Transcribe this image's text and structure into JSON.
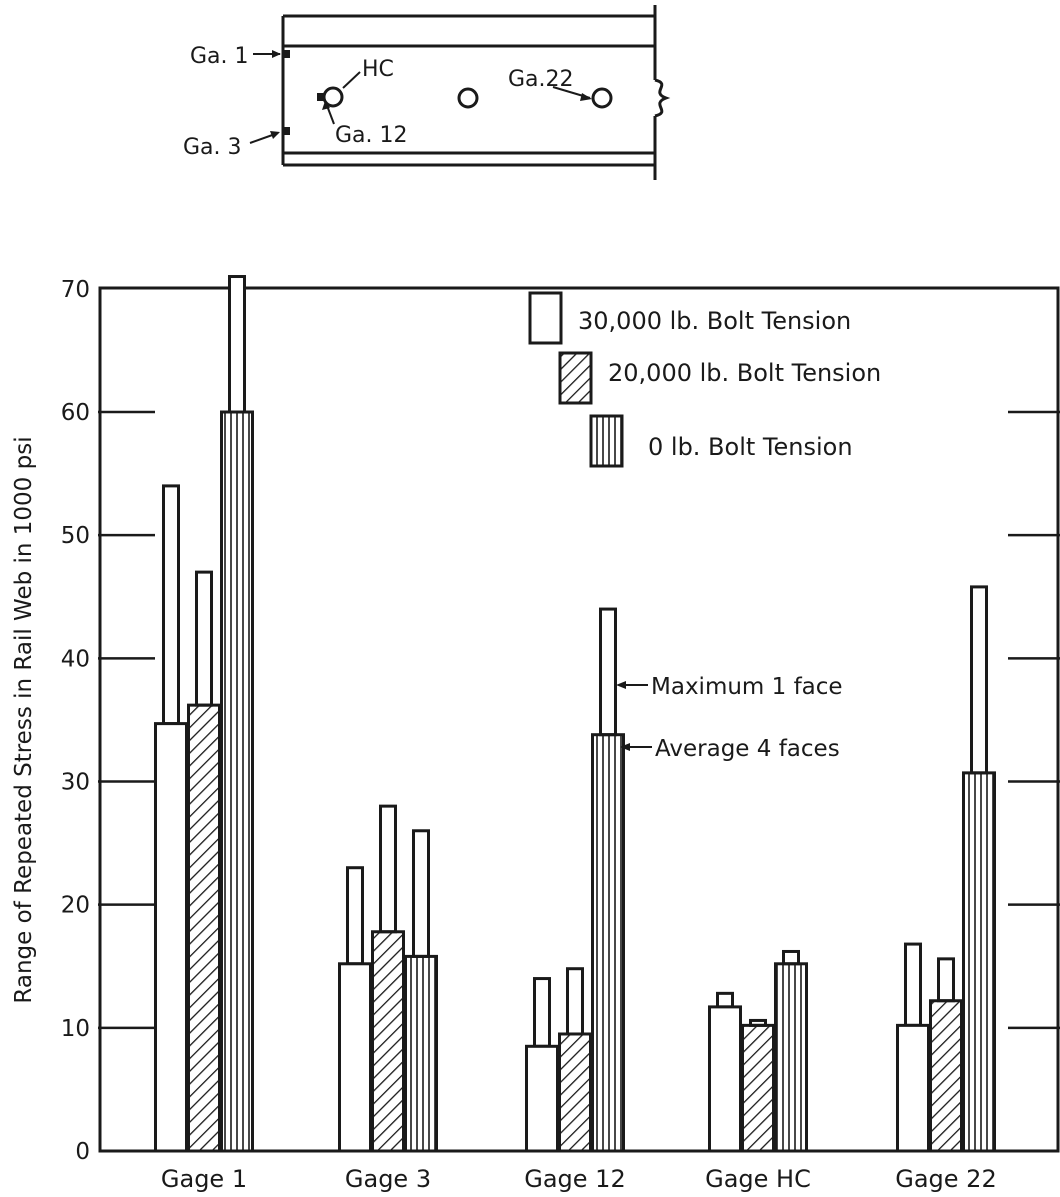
{
  "diagram": {
    "labels": {
      "ga1": "Ga. 1",
      "ga3": "Ga. 3",
      "hc": "HC",
      "ga12": "Ga. 12",
      "ga22": "Ga.22"
    }
  },
  "chart_data": {
    "type": "bar",
    "ylabel": "Range of Repeated Stress in Rail Web in 1000 psi",
    "xlabel": "",
    "ylim": [
      0,
      70
    ],
    "yticks": [
      0,
      10,
      20,
      30,
      40,
      50,
      60,
      70
    ],
    "categories": [
      "Gage 1",
      "Gage 3",
      "Gage 12",
      "Gage HC",
      "Gage 22"
    ],
    "series": [
      {
        "name": "30,000 lb. Bolt Tension",
        "pattern": "plain",
        "average": [
          34.7,
          15.2,
          8.5,
          11.7,
          10.2
        ],
        "maximum": [
          54,
          23,
          14,
          12.8,
          16.8
        ]
      },
      {
        "name": "20,000 lb. Bolt Tension",
        "pattern": "hatch",
        "average": [
          36.2,
          17.8,
          9.5,
          10.2,
          12.2
        ],
        "maximum": [
          47,
          28,
          14.8,
          10.6,
          15.6
        ]
      },
      {
        "name": "0 lb. Bolt Tension",
        "pattern": "vertical",
        "average": [
          60,
          15.8,
          33.8,
          15.2,
          30.7
        ],
        "maximum": [
          71,
          26,
          44,
          16.2,
          45.8
        ]
      }
    ],
    "annotations": {
      "maximum": "Maximum 1 face",
      "average": "Average 4 faces"
    },
    "grid": false,
    "legend": "top-right"
  }
}
